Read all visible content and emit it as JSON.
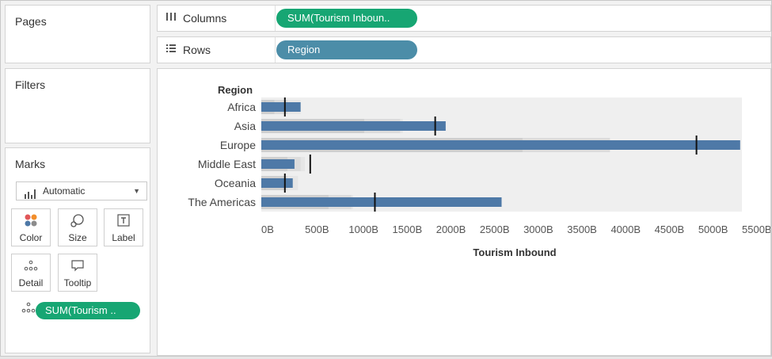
{
  "pages": {
    "title": "Pages"
  },
  "filters": {
    "title": "Filters"
  },
  "marks": {
    "title": "Marks",
    "mark_type": "Automatic",
    "buttons": [
      {
        "label": "Color",
        "icon": "color-icon"
      },
      {
        "label": "Size",
        "icon": "size-icon"
      },
      {
        "label": "Label",
        "icon": "label-icon"
      },
      {
        "label": "Detail",
        "icon": "detail-icon"
      },
      {
        "label": "Tooltip",
        "icon": "tooltip-icon"
      }
    ],
    "field_pill": "SUM(Tourism .."
  },
  "shelves": {
    "columns_label": "Columns",
    "columns_pill": "SUM(Tourism Inboun..",
    "rows_label": "Rows",
    "rows_pill": "Region"
  },
  "colors": {
    "bar": "#4e79a7",
    "pill_green": "#17a673",
    "pill_blue": "#4c8da8",
    "band_dark": "#cfcfcf",
    "band_mid": "#dcdcdc",
    "band_light": "#e6e6e6",
    "background": "#efefef"
  },
  "chart_data": {
    "type": "bar",
    "subtype": "bullet",
    "row_header": "Region",
    "xlabel": "Tourism Inbound",
    "xlim": [
      0,
      5500
    ],
    "xticks": [
      "0B",
      "500B",
      "1000B",
      "1500B",
      "2000B",
      "2500B",
      "3000B",
      "3500B",
      "4000B",
      "4500B",
      "5000B",
      "5500B"
    ],
    "categories": [
      "Africa",
      "Asia",
      "Europe",
      "Middle East",
      "Oceania",
      "The Americas"
    ],
    "values": [
      450,
      2110,
      5480,
      380,
      360,
      2750
    ],
    "reference_lines": [
      270,
      1990,
      4980,
      560,
      270,
      1300
    ],
    "bands": [
      [
        [
          0,
          150
        ],
        [
          150,
          300
        ],
        [
          300,
          450
        ]
      ],
      [
        [
          0,
          1180
        ],
        [
          1180,
          1590
        ],
        [
          1590,
          1620
        ]
      ],
      [
        [
          0,
          2990
        ],
        [
          2990,
          3990
        ],
        [
          3990,
          3990
        ]
      ],
      [
        [
          0,
          300
        ],
        [
          300,
          450
        ],
        [
          450,
          500
        ]
      ],
      [
        [
          0,
          270
        ],
        [
          270,
          300
        ],
        [
          300,
          420
        ]
      ],
      [
        [
          0,
          770
        ],
        [
          770,
          1030
        ],
        [
          1030,
          1050
        ]
      ]
    ]
  }
}
